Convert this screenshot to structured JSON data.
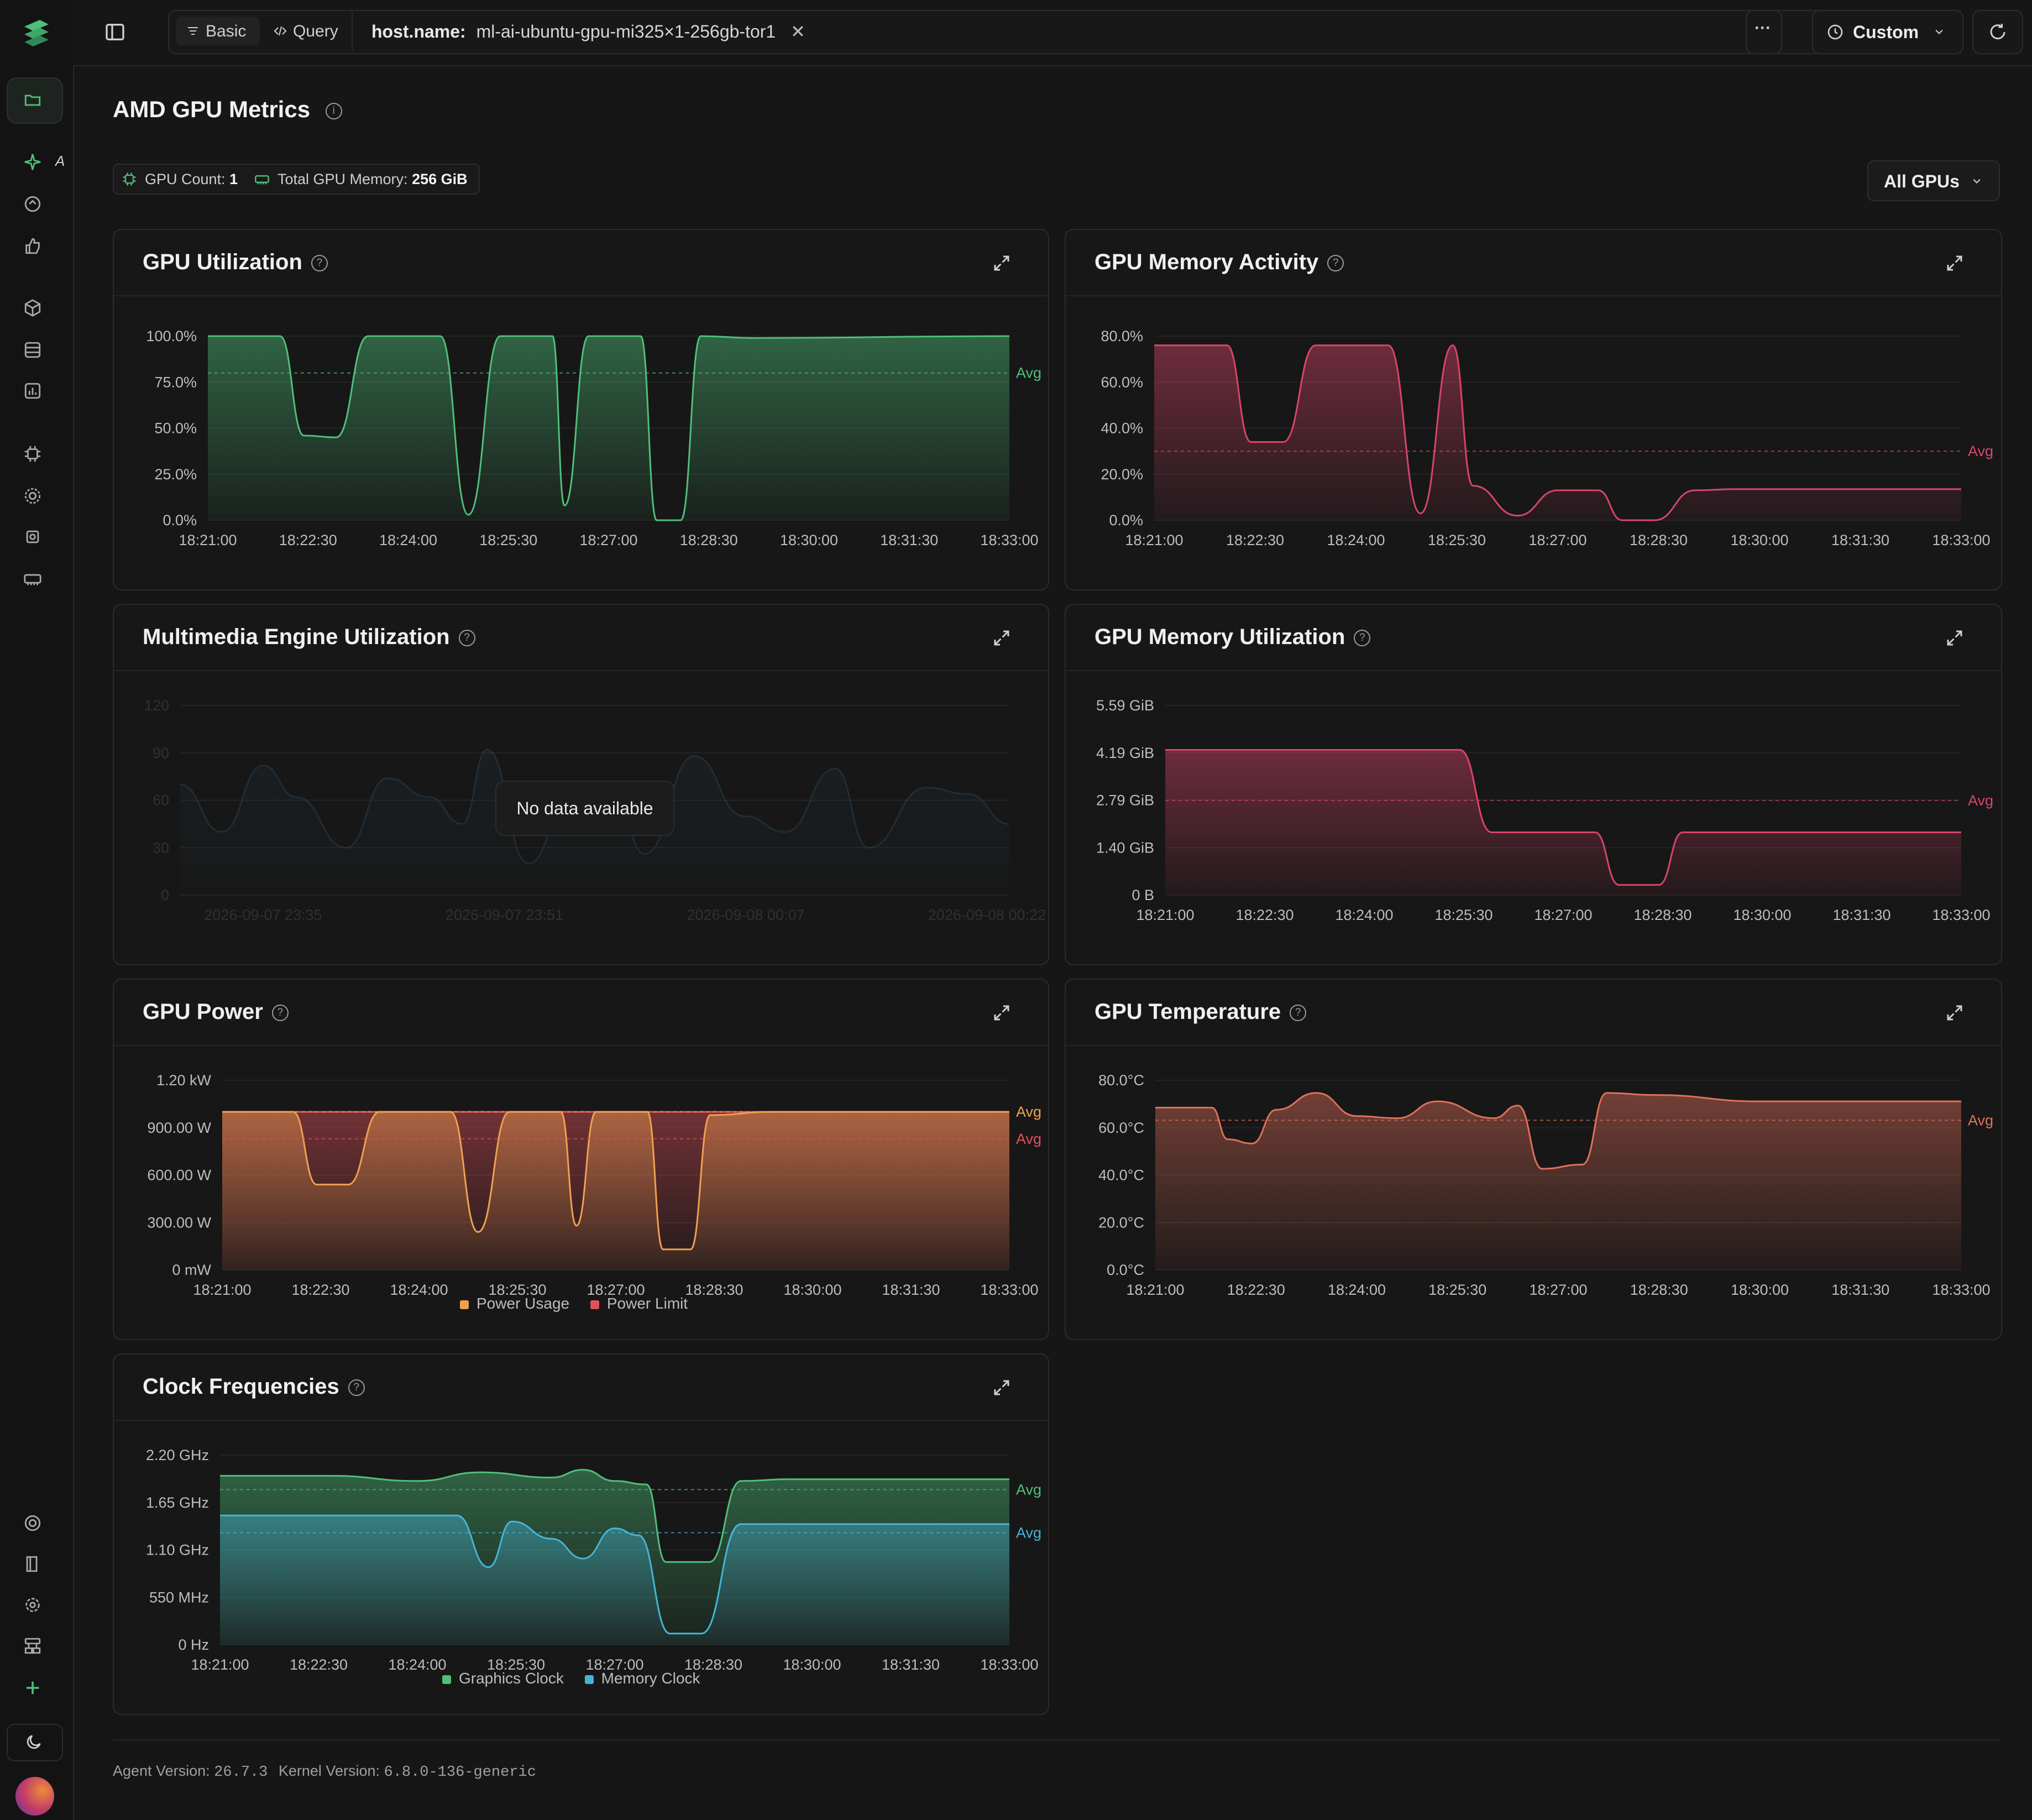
{
  "topbar": {
    "mode_basic": "Basic",
    "mode_query": "Query",
    "filter_key": "host.name:",
    "filter_value": "ml-ai-ubuntu-gpu-mi325×1-256gb-tor1",
    "more": "···",
    "time_range": "Custom"
  },
  "sidebar": {
    "partial_label": "A",
    "icons": [
      "files-icon",
      "sparkle-icon",
      "explore-icon",
      "thumbs-up-icon",
      "cube-icon",
      "database-icon",
      "chart-icon",
      "chip-icon",
      "gear-chip-icon",
      "gpu-chip-icon",
      "memory-icon",
      "lifebuoy-icon",
      "book-icon",
      "settings-icon",
      "workflow-icon",
      "plus-icon",
      "moon-icon",
      "avatar"
    ]
  },
  "page": {
    "title": "AMD GPU Metrics",
    "gpu_count_label": "GPU Count:",
    "gpu_count": "1",
    "total_mem_label": "Total GPU Memory:",
    "total_mem": "256 GiB",
    "gpu_selector": "All GPUs"
  },
  "panels": {
    "util": {
      "title": "GPU Utilization"
    },
    "mem_activity": {
      "title": "GPU Memory Activity"
    },
    "multimedia": {
      "title": "Multimedia Engine Utilization",
      "no_data": "No data available"
    },
    "mem_util": {
      "title": "GPU Memory Utilization"
    },
    "power": {
      "title": "GPU Power",
      "legend": [
        "Power Usage",
        "Power Limit"
      ]
    },
    "temp": {
      "title": "GPU Temperature"
    },
    "clock": {
      "title": "Clock Frequencies",
      "legend": [
        "Graphics Clock",
        "Memory Clock"
      ]
    }
  },
  "footer": {
    "agent_label": "Agent Version:",
    "agent_version": "26.7.3",
    "kernel_label": "Kernel Version:",
    "kernel_version": "6.8.0-136-generic"
  },
  "colors": {
    "green": "#4fbf7a",
    "pink": "#d8456a",
    "orange": "#f0a050",
    "red_limit": "#e0525a",
    "temp": "#e0705a",
    "cyan": "#46b4d8",
    "teal_faded": "#2a4a5e"
  },
  "chart_data": [
    {
      "id": "util",
      "type": "area",
      "title": "GPU Utilization",
      "x_ticks": [
        "18:21:00",
        "18:22:30",
        "18:24:00",
        "18:25:30",
        "18:27:00",
        "18:28:30",
        "18:30:00",
        "18:31:30",
        "18:33:00"
      ],
      "y_ticks": [
        "0.0%",
        "25.0%",
        "50.0%",
        "75.0%",
        "100.0%"
      ],
      "ylim": [
        0,
        100
      ],
      "avg_label": "Avg",
      "avg": 80,
      "series": [
        {
          "color": "#4fbf7a",
          "points": [
            [
              0,
              100
            ],
            [
              0.09,
              100
            ],
            [
              0.12,
              46
            ],
            [
              0.16,
              45
            ],
            [
              0.2,
              100
            ],
            [
              0.29,
              100
            ],
            [
              0.325,
              3
            ],
            [
              0.365,
              100
            ],
            [
              0.43,
              100
            ],
            [
              0.445,
              8
            ],
            [
              0.475,
              100
            ],
            [
              0.54,
              100
            ],
            [
              0.56,
              0
            ],
            [
              0.59,
              0
            ],
            [
              0.615,
              100
            ],
            [
              0.68,
              99
            ],
            [
              1,
              100
            ]
          ]
        }
      ]
    },
    {
      "id": "mem_activity",
      "type": "area",
      "title": "GPU Memory Activity",
      "x_ticks": [
        "18:21:00",
        "18:22:30",
        "18:24:00",
        "18:25:30",
        "18:27:00",
        "18:28:30",
        "18:30:00",
        "18:31:30",
        "18:33:00"
      ],
      "y_ticks": [
        "0.0%",
        "20.0%",
        "40.0%",
        "60.0%",
        "80.0%"
      ],
      "ylim": [
        0,
        80
      ],
      "avg_label": "Avg",
      "avg": 30,
      "series": [
        {
          "color": "#d8456a",
          "points": [
            [
              0,
              76
            ],
            [
              0.09,
              76
            ],
            [
              0.12,
              34
            ],
            [
              0.16,
              34
            ],
            [
              0.2,
              76
            ],
            [
              0.29,
              76
            ],
            [
              0.33,
              3
            ],
            [
              0.37,
              76
            ],
            [
              0.395,
              15
            ],
            [
              0.45,
              2
            ],
            [
              0.5,
              13
            ],
            [
              0.55,
              13
            ],
            [
              0.58,
              0
            ],
            [
              0.62,
              0
            ],
            [
              0.67,
              13
            ],
            [
              0.72,
              13.5
            ],
            [
              1,
              13.5
            ]
          ]
        }
      ]
    },
    {
      "id": "multimedia",
      "type": "area",
      "title": "Multimedia Engine Utilization",
      "no_data": true,
      "x_ticks": [
        "2026-09-07 23:35",
        "2026-09-07 23:51",
        "2026-09-08 00:07",
        "2026-09-08 00:22"
      ],
      "y_ticks": [
        "0",
        "30",
        "60",
        "90",
        "120"
      ],
      "ylim": [
        0,
        120
      ],
      "series": [
        {
          "color": "#2a4a5e",
          "points": [
            [
              0,
              70
            ],
            [
              0.05,
              40
            ],
            [
              0.1,
              82
            ],
            [
              0.14,
              62
            ],
            [
              0.2,
              30
            ],
            [
              0.25,
              74
            ],
            [
              0.3,
              62
            ],
            [
              0.34,
              45
            ],
            [
              0.37,
              92
            ],
            [
              0.42,
              20
            ],
            [
              0.47,
              62
            ],
            [
              0.52,
              72
            ],
            [
              0.56,
              26
            ],
            [
              0.62,
              88
            ],
            [
              0.68,
              50
            ],
            [
              0.73,
              40
            ],
            [
              0.79,
              80
            ],
            [
              0.83,
              30
            ],
            [
              0.9,
              68
            ],
            [
              0.95,
              64
            ],
            [
              1,
              45
            ]
          ]
        }
      ]
    },
    {
      "id": "mem_util",
      "type": "area",
      "title": "GPU Memory Utilization",
      "x_ticks": [
        "18:21:00",
        "18:22:30",
        "18:24:00",
        "18:25:30",
        "18:27:00",
        "18:28:30",
        "18:30:00",
        "18:31:30",
        "18:33:00"
      ],
      "y_ticks": [
        "0 B",
        "1.40 GiB",
        "2.79 GiB",
        "4.19 GiB",
        "5.59 GiB"
      ],
      "ylim": [
        0,
        5.59
      ],
      "avg_label": "Avg",
      "avg": 2.79,
      "series": [
        {
          "color": "#d8456a",
          "points": [
            [
              0,
              4.28
            ],
            [
              0.37,
              4.28
            ],
            [
              0.41,
              1.85
            ],
            [
              0.54,
              1.85
            ],
            [
              0.57,
              0.3
            ],
            [
              0.62,
              0.3
            ],
            [
              0.65,
              1.85
            ],
            [
              1,
              1.85
            ]
          ]
        }
      ]
    },
    {
      "id": "power",
      "type": "area",
      "title": "GPU Power",
      "x_ticks": [
        "18:21:00",
        "18:22:30",
        "18:24:00",
        "18:25:30",
        "18:27:00",
        "18:28:30",
        "18:30:00",
        "18:31:30",
        "18:33:00"
      ],
      "y_ticks": [
        "0 mW",
        "300.00 W",
        "600.00 W",
        "900.00 W",
        "1.20 kW"
      ],
      "ylim": [
        0,
        1200
      ],
      "avg_labels": [
        "Avg",
        "Avg"
      ],
      "avgs": [
        1000,
        830
      ],
      "series": [
        {
          "name": "Power Limit",
          "color": "#e0525a",
          "points": [
            [
              0,
              1000
            ],
            [
              1,
              1000
            ]
          ]
        },
        {
          "name": "Power Usage",
          "color": "#f0a050",
          "points": [
            [
              0,
              1000
            ],
            [
              0.09,
              1000
            ],
            [
              0.12,
              540
            ],
            [
              0.16,
              540
            ],
            [
              0.2,
              1000
            ],
            [
              0.29,
              1000
            ],
            [
              0.325,
              240
            ],
            [
              0.365,
              1000
            ],
            [
              0.43,
              1000
            ],
            [
              0.45,
              280
            ],
            [
              0.475,
              1000
            ],
            [
              0.54,
              1000
            ],
            [
              0.56,
              130
            ],
            [
              0.595,
              130
            ],
            [
              0.62,
              980
            ],
            [
              0.7,
              1000
            ],
            [
              1,
              1000
            ]
          ]
        }
      ]
    },
    {
      "id": "temp",
      "type": "area",
      "title": "GPU Temperature",
      "x_ticks": [
        "18:21:00",
        "18:22:30",
        "18:24:00",
        "18:25:30",
        "18:27:00",
        "18:28:30",
        "18:30:00",
        "18:31:30",
        "18:33:00"
      ],
      "y_ticks": [
        "0.0°C",
        "20.0°C",
        "40.0°C",
        "60.0°C",
        "80.0°C"
      ],
      "ylim": [
        0,
        90
      ],
      "avg_label": "Avg",
      "avg": 71,
      "series": [
        {
          "color": "#e0705a",
          "points": [
            [
              0,
              77
            ],
            [
              0.07,
              77
            ],
            [
              0.09,
              62
            ],
            [
              0.12,
              60
            ],
            [
              0.15,
              76
            ],
            [
              0.2,
              84
            ],
            [
              0.25,
              73
            ],
            [
              0.3,
              72
            ],
            [
              0.35,
              80
            ],
            [
              0.42,
              72
            ],
            [
              0.45,
              78
            ],
            [
              0.48,
              48
            ],
            [
              0.53,
              50
            ],
            [
              0.56,
              84
            ],
            [
              0.62,
              83
            ],
            [
              0.75,
              80
            ],
            [
              1,
              80
            ]
          ]
        }
      ]
    },
    {
      "id": "clock",
      "type": "area",
      "title": "Clock Frequencies",
      "x_ticks": [
        "18:21:00",
        "18:22:30",
        "18:24:00",
        "18:25:30",
        "18:27:00",
        "18:28:30",
        "18:30:00",
        "18:31:30",
        "18:33:00"
      ],
      "y_ticks": [
        "0 Hz",
        "550 MHz",
        "1.10 GHz",
        "1.65 GHz",
        "2.20 GHz"
      ],
      "ylim": [
        0,
        2200
      ],
      "avg_labels": [
        "Avg",
        "Avg"
      ],
      "avgs": [
        1800,
        1300
      ],
      "series": [
        {
          "name": "Graphics Clock",
          "color": "#4fbf7a",
          "points": [
            [
              0,
              1960
            ],
            [
              0.14,
              1960
            ],
            [
              0.25,
              1900
            ],
            [
              0.33,
              2000
            ],
            [
              0.42,
              1940
            ],
            [
              0.46,
              2030
            ],
            [
              0.5,
              1900
            ],
            [
              0.54,
              1860
            ],
            [
              0.565,
              960
            ],
            [
              0.62,
              960
            ],
            [
              0.66,
              1900
            ],
            [
              0.72,
              1920
            ],
            [
              1,
              1920
            ]
          ]
        },
        {
          "name": "Memory Clock",
          "color": "#46b4d8",
          "points": [
            [
              0,
              1500
            ],
            [
              0.3,
              1500
            ],
            [
              0.34,
              900
            ],
            [
              0.37,
              1430
            ],
            [
              0.42,
              1230
            ],
            [
              0.46,
              1000
            ],
            [
              0.5,
              1350
            ],
            [
              0.53,
              1270
            ],
            [
              0.57,
              130
            ],
            [
              0.61,
              130
            ],
            [
              0.66,
              1400
            ],
            [
              1,
              1400
            ]
          ]
        }
      ]
    }
  ]
}
